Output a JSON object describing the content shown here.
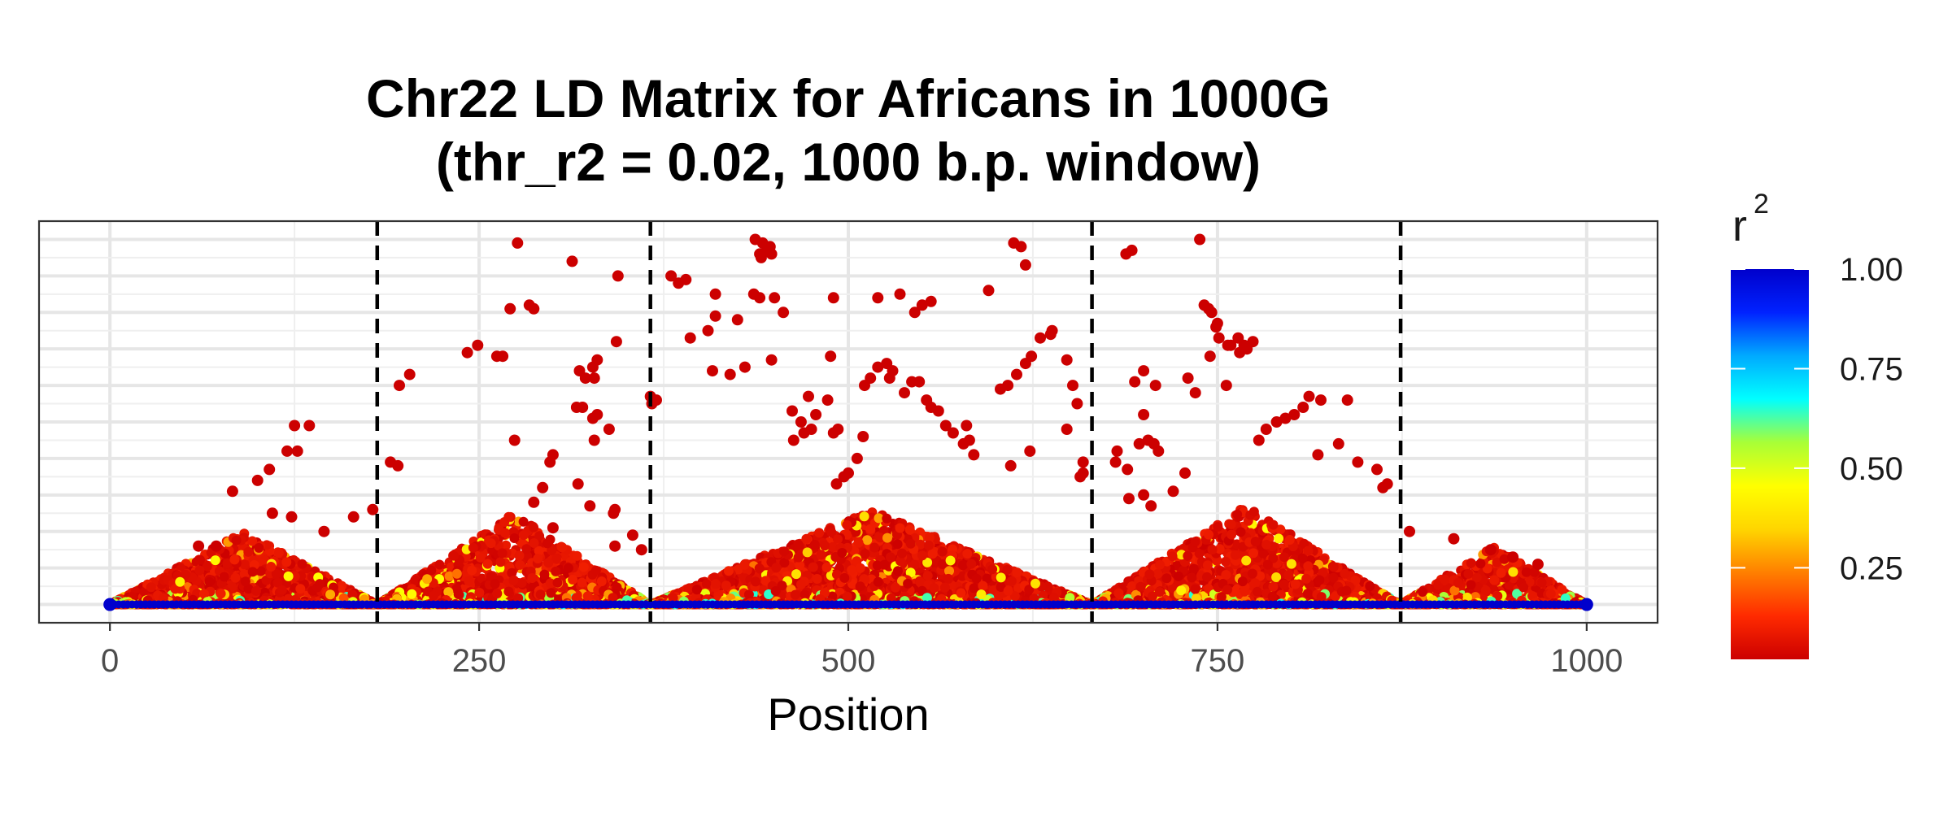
{
  "chart_data": {
    "type": "scatter",
    "title_lines": [
      "Chr22 LD Matrix for Africans in 1000G",
      "(thr_r2 = 0.02, 1000 b.p. window)"
    ],
    "xlabel": "Position",
    "ylabel": "",
    "xlim": [
      -48,
      1048
    ],
    "ylim": [
      -0.05,
      1.05
    ],
    "x_ticks": [
      0,
      250,
      500,
      750,
      1000
    ],
    "x_tick_labels": [
      "0",
      "250",
      "500",
      "750",
      "1000"
    ],
    "grid": true,
    "block_boundaries": [
      181,
      366,
      665,
      874
    ],
    "legend": {
      "title": "r",
      "title_superscript": "2",
      "placement": "right",
      "color_scale": "jet (red → yellow → cyan → blue)",
      "breaks": [
        1.0,
        0.75,
        0.5,
        0.25
      ],
      "break_labels": [
        "1.00",
        "0.75",
        "0.50",
        "0.25"
      ],
      "colors": [
        "#cc0000",
        "#ff2a00",
        "#ff7f00",
        "#ffd500",
        "#ffff00",
        "#a8ff37",
        "#00ffff",
        "#00aaff",
        "#0022ff",
        "#0000cc"
      ]
    },
    "series": [
      {
        "name": "",
        "point_color": "#cc0000",
        "baseline_color": "#0000cc",
        "triangles": [
          {
            "start": 0,
            "end": 181,
            "peak": 0.2,
            "density": 0.8
          },
          {
            "start": 181,
            "end": 366,
            "peak": 0.25,
            "density": 0.85
          },
          {
            "start": 366,
            "end": 665,
            "peak": 0.26,
            "density": 1.0
          },
          {
            "start": 665,
            "end": 874,
            "peak": 0.27,
            "density": 0.9
          },
          {
            "start": 874,
            "end": 1000,
            "peak": 0.16,
            "density": 0.7
          }
        ],
        "points": [
          [
            125,
            0.49
          ],
          [
            135,
            0.49
          ],
          [
            120,
            0.42
          ],
          [
            127,
            0.42
          ],
          [
            83,
            0.31
          ],
          [
            100,
            0.34
          ],
          [
            108,
            0.37
          ],
          [
            110,
            0.25
          ],
          [
            123,
            0.24
          ],
          [
            145,
            0.2
          ],
          [
            165,
            0.24
          ],
          [
            178,
            0.26
          ],
          [
            60,
            0.16
          ],
          [
            72,
            0.16
          ],
          [
            190,
            0.39
          ],
          [
            195,
            0.38
          ],
          [
            196,
            0.6
          ],
          [
            203,
            0.63
          ],
          [
            242,
            0.69
          ],
          [
            249,
            0.71
          ],
          [
            262,
            0.68
          ],
          [
            266,
            0.68
          ],
          [
            271,
            0.81
          ],
          [
            276,
            0.99
          ],
          [
            284,
            0.82
          ],
          [
            287,
            0.81
          ],
          [
            274,
            0.45
          ],
          [
            287,
            0.28
          ],
          [
            293,
            0.32
          ],
          [
            298,
            0.39
          ],
          [
            300,
            0.41
          ],
          [
            300,
            0.21
          ],
          [
            313,
            0.94
          ],
          [
            316,
            0.54
          ],
          [
            320,
            0.54
          ],
          [
            318,
            0.64
          ],
          [
            322,
            0.62
          ],
          [
            328,
            0.62
          ],
          [
            327,
            0.65
          ],
          [
            330,
            0.67
          ],
          [
            330,
            0.52
          ],
          [
            327,
            0.51
          ],
          [
            338,
            0.48
          ],
          [
            343,
            0.72
          ],
          [
            344,
            0.9
          ],
          [
            328,
            0.45
          ],
          [
            317,
            0.33
          ],
          [
            341,
            0.25
          ],
          [
            342,
            0.26
          ],
          [
            366,
            0.57
          ],
          [
            370,
            0.56
          ],
          [
            367,
            0.55
          ],
          [
            342,
            0.16
          ],
          [
            325,
            0.27
          ],
          [
            354,
            0.19
          ],
          [
            360,
            0.15
          ],
          [
            380,
            0.9
          ],
          [
            385,
            0.88
          ],
          [
            390,
            0.89
          ],
          [
            393,
            0.73
          ],
          [
            405,
            0.75
          ],
          [
            410,
            0.79
          ],
          [
            410,
            0.85
          ],
          [
            408,
            0.64
          ],
          [
            420,
            0.63
          ],
          [
            425,
            0.78
          ],
          [
            430,
            0.65
          ],
          [
            436,
            0.85
          ],
          [
            437,
            1.0
          ],
          [
            442,
            0.99
          ],
          [
            445,
            0.97
          ],
          [
            448,
            0.96
          ],
          [
            441,
            0.95
          ],
          [
            447,
            0.98
          ],
          [
            440,
            0.96
          ],
          [
            440,
            0.84
          ],
          [
            450,
            0.84
          ],
          [
            456,
            0.8
          ],
          [
            448,
            0.67
          ],
          [
            463,
            0.45
          ],
          [
            470,
            0.47
          ],
          [
            475,
            0.48
          ],
          [
            468,
            0.5
          ],
          [
            462,
            0.53
          ],
          [
            473,
            0.57
          ],
          [
            478,
            0.52
          ],
          [
            490,
            0.47
          ],
          [
            493,
            0.48
          ],
          [
            486,
            0.56
          ],
          [
            490,
            0.84
          ],
          [
            488,
            0.68
          ],
          [
            492,
            0.33
          ],
          [
            497,
            0.35
          ],
          [
            500,
            0.36
          ],
          [
            506,
            0.4
          ],
          [
            510,
            0.46
          ],
          [
            511,
            0.6
          ],
          [
            515,
            0.62
          ],
          [
            520,
            0.65
          ],
          [
            526,
            0.66
          ],
          [
            530,
            0.64
          ],
          [
            528,
            0.62
          ],
          [
            538,
            0.58
          ],
          [
            543,
            0.61
          ],
          [
            548,
            0.61
          ],
          [
            553,
            0.56
          ],
          [
            556,
            0.54
          ],
          [
            561,
            0.53
          ],
          [
            566,
            0.49
          ],
          [
            571,
            0.47
          ],
          [
            578,
            0.44
          ],
          [
            582,
            0.45
          ],
          [
            585,
            0.41
          ],
          [
            580,
            0.49
          ],
          [
            520,
            0.84
          ],
          [
            535,
            0.85
          ],
          [
            545,
            0.8
          ],
          [
            550,
            0.82
          ],
          [
            556,
            0.83
          ],
          [
            595,
            0.86
          ],
          [
            603,
            0.59
          ],
          [
            608,
            0.6
          ],
          [
            614,
            0.63
          ],
          [
            620,
            0.66
          ],
          [
            624,
            0.68
          ],
          [
            630,
            0.73
          ],
          [
            637,
            0.74
          ],
          [
            638,
            0.75
          ],
          [
            612,
            0.99
          ],
          [
            617,
            0.98
          ],
          [
            620,
            0.93
          ],
          [
            648,
            0.67
          ],
          [
            652,
            0.6
          ],
          [
            655,
            0.55
          ],
          [
            648,
            0.48
          ],
          [
            659,
            0.39
          ],
          [
            659,
            0.36
          ],
          [
            610,
            0.38
          ],
          [
            623,
            0.42
          ],
          [
            657,
            0.35
          ],
          [
            688,
            0.96
          ],
          [
            692,
            0.97
          ],
          [
            694,
            0.61
          ],
          [
            700,
            0.64
          ],
          [
            708,
            0.6
          ],
          [
            700,
            0.52
          ],
          [
            703,
            0.45
          ],
          [
            707,
            0.44
          ],
          [
            710,
            0.42
          ],
          [
            697,
            0.44
          ],
          [
            681,
            0.39
          ],
          [
            689,
            0.37
          ],
          [
            682,
            0.42
          ],
          [
            690,
            0.29
          ],
          [
            700,
            0.3
          ],
          [
            705,
            0.27
          ],
          [
            720,
            0.31
          ],
          [
            728,
            0.36
          ],
          [
            730,
            0.62
          ],
          [
            745,
            0.68
          ],
          [
            735,
            0.58
          ],
          [
            741,
            0.82
          ],
          [
            744,
            0.81
          ],
          [
            746,
            0.8
          ],
          [
            750,
            0.77
          ],
          [
            738,
            1.0
          ],
          [
            749,
            0.76
          ],
          [
            751,
            0.73
          ],
          [
            757,
            0.71
          ],
          [
            759,
            0.71
          ],
          [
            756,
            0.6
          ],
          [
            764,
            0.73
          ],
          [
            768,
            0.71
          ],
          [
            774,
            0.72
          ],
          [
            765,
            0.69
          ],
          [
            770,
            0.7
          ],
          [
            778,
            0.45
          ],
          [
            783,
            0.48
          ],
          [
            790,
            0.5
          ],
          [
            796,
            0.51
          ],
          [
            802,
            0.52
          ],
          [
            808,
            0.54
          ],
          [
            812,
            0.57
          ],
          [
            820,
            0.56
          ],
          [
            838,
            0.56
          ],
          [
            818,
            0.41
          ],
          [
            832,
            0.44
          ],
          [
            845,
            0.39
          ],
          [
            858,
            0.37
          ],
          [
            862,
            0.32
          ],
          [
            865,
            0.33
          ],
          [
            880,
            0.2
          ],
          [
            910,
            0.18
          ],
          [
            935,
            0.15
          ],
          [
            950,
            0.13
          ],
          [
            967,
            0.11
          ]
        ]
      }
    ]
  }
}
